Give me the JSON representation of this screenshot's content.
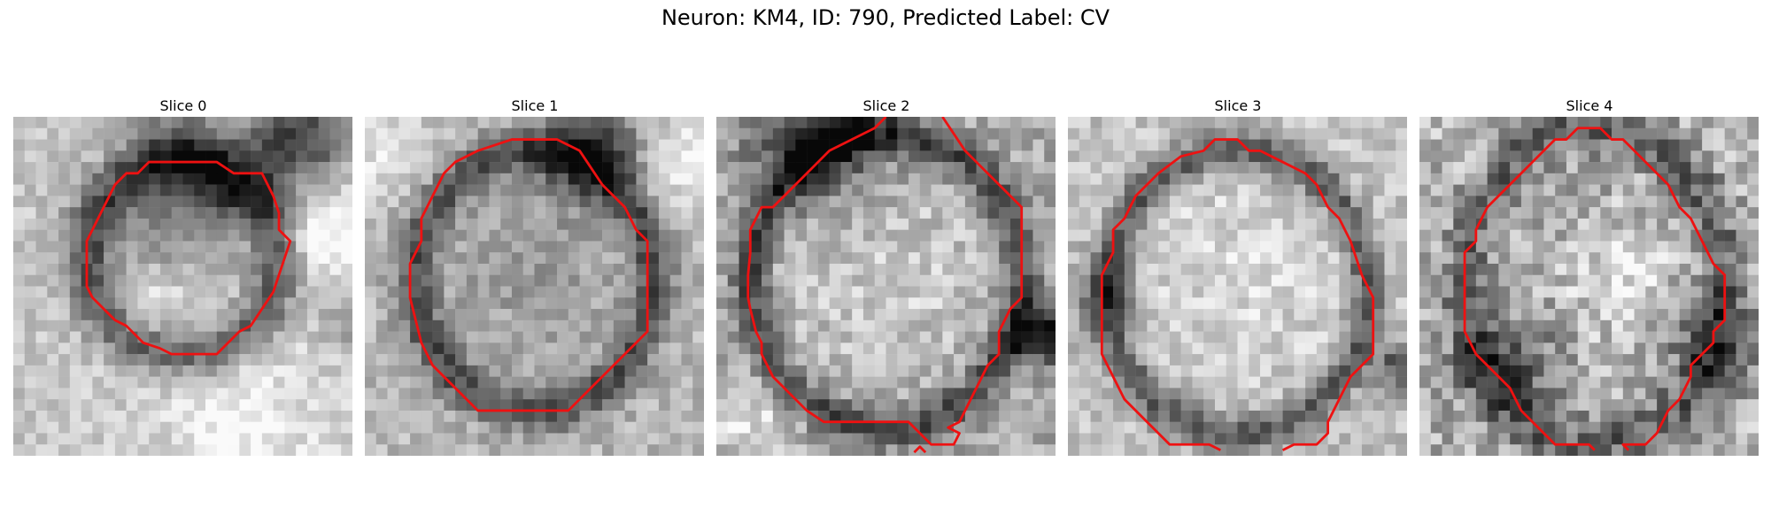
{
  "figure": {
    "title": "Neuron: KM4, ID: 790, Predicted Label: CV"
  },
  "colors": {
    "contour": "#ee1111",
    "background": "#ffffff"
  },
  "panels": [
    {
      "title": "Slice 0"
    },
    {
      "title": "Slice 1"
    },
    {
      "title": "Slice 2"
    },
    {
      "title": "Slice 3"
    },
    {
      "title": "Slice 4"
    }
  ]
}
